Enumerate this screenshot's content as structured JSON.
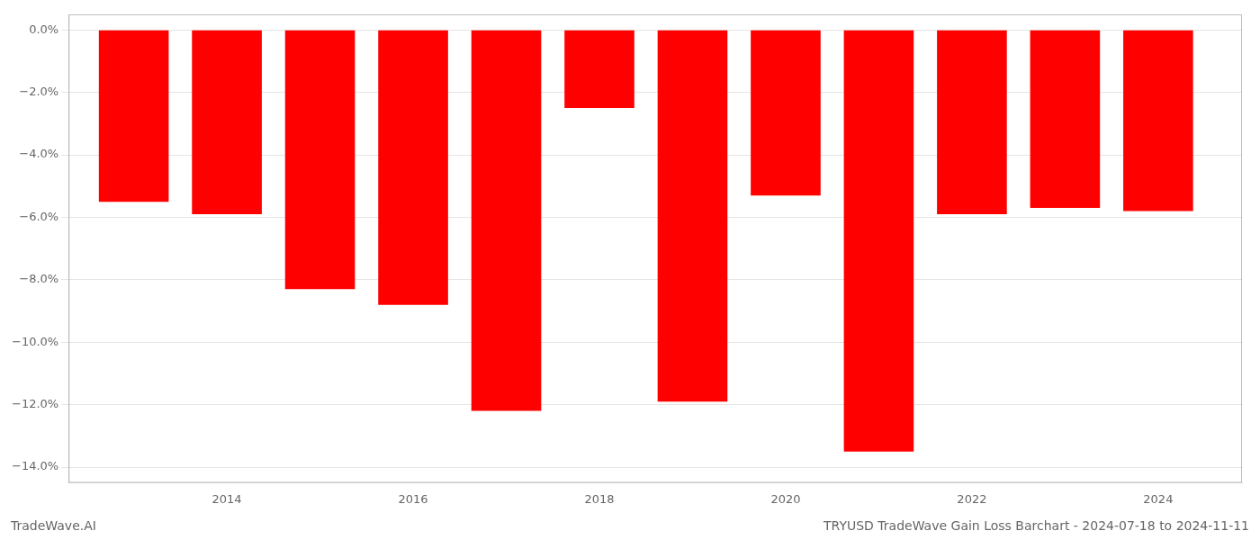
{
  "chart_data": {
    "type": "bar",
    "title": "TRYUSD TradeWave Gain Loss Barchart - 2024-07-18 to 2024-11-11",
    "annotations": [
      "TradeWave.AI"
    ],
    "x": [
      2013,
      2014,
      2015,
      2016,
      2017,
      2018,
      2019,
      2020,
      2021,
      2022,
      2023,
      2024
    ],
    "values": [
      -5.5,
      -5.9,
      -8.3,
      -8.8,
      -12.2,
      -2.5,
      -11.9,
      -5.3,
      -13.5,
      -5.9,
      -5.7,
      -5.8
    ],
    "color": "#ff0000",
    "xlim": [
      2012.3,
      2024.9
    ],
    "xticks": [
      2014,
      2016,
      2018,
      2020,
      2022,
      2024
    ],
    "ylim": [
      -14.5,
      0.5
    ],
    "yticks": [
      {
        "value": 0.0,
        "label": "0.0%"
      },
      {
        "value": -2.0,
        "label": "−2.0%"
      },
      {
        "value": -4.0,
        "label": "−4.0%"
      },
      {
        "value": -6.0,
        "label": "−6.0%"
      },
      {
        "value": -8.0,
        "label": "−8.0%"
      },
      {
        "value": -10.0,
        "label": "−10.0%"
      },
      {
        "value": -12.0,
        "label": "−12.0%"
      },
      {
        "value": -14.0,
        "label": "−14.0%"
      }
    ],
    "grid": true
  }
}
